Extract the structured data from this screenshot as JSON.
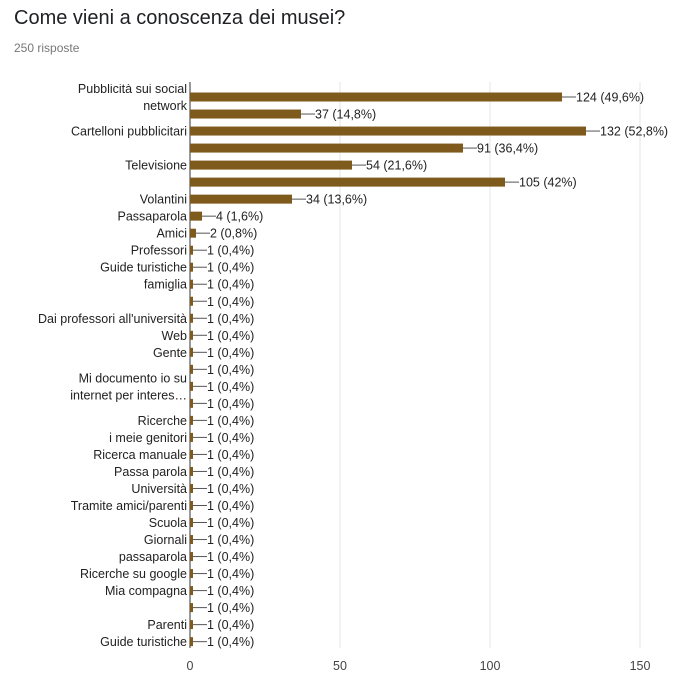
{
  "header": {
    "title": "Come vieni a conoscenza dei musei?",
    "subtitle": "250 risposte"
  },
  "chart_data": {
    "type": "bar",
    "orientation": "horizontal",
    "xlim": [
      0,
      150
    ],
    "xticks": [
      0,
      50,
      100,
      150
    ],
    "grid": true,
    "bar_color": "#7f5a1d",
    "categories": [
      "Pubblicità sui social network",
      "",
      "Cartelloni pubblicitari",
      "",
      "Televisione",
      "",
      "Volantini",
      "Passaparola",
      "Amici",
      "Professori",
      "Guide turistiche",
      "famiglia",
      "",
      "Dai professori all'università",
      "Web",
      "Gente",
      "",
      "Mi documento io su internet per interes…",
      "",
      "Ricerche",
      "i meie genitori",
      "Ricerca manuale",
      "Passa parola",
      "Università",
      "Tramite amici/parenti",
      "Scuola",
      "Giornali",
      "passaparola",
      "Ricerche su google",
      "Mia compagna",
      "",
      "Parenti",
      "Guide turistiche"
    ],
    "values": [
      124,
      37,
      132,
      91,
      54,
      105,
      34,
      4,
      2,
      1,
      1,
      1,
      1,
      1,
      1,
      1,
      1,
      1,
      1,
      1,
      1,
      1,
      1,
      1,
      1,
      1,
      1,
      1,
      1,
      1,
      1,
      1,
      1
    ],
    "value_labels": [
      "124 (49,6%)",
      "37 (14,8%)",
      "132 (52,8%)",
      "91 (36,4%)",
      "54 (21,6%)",
      "105 (42%)",
      "34 (13,6%)",
      "4 (1,6%)",
      "2 (0,8%)",
      "1 (0,4%)",
      "1 (0,4%)",
      "1 (0,4%)",
      "1 (0,4%)",
      "1 (0,4%)",
      "1 (0,4%)",
      "1 (0,4%)",
      "1 (0,4%)",
      "1 (0,4%)",
      "1 (0,4%)",
      "1 (0,4%)",
      "1 (0,4%)",
      "1 (0,4%)",
      "1 (0,4%)",
      "1 (0,4%)",
      "1 (0,4%)",
      "1 (0,4%)",
      "1 (0,4%)",
      "1 (0,4%)",
      "1 (0,4%)",
      "1 (0,4%)",
      "1 (0,4%)",
      "1 (0,4%)",
      "1 (0,4%)"
    ]
  }
}
